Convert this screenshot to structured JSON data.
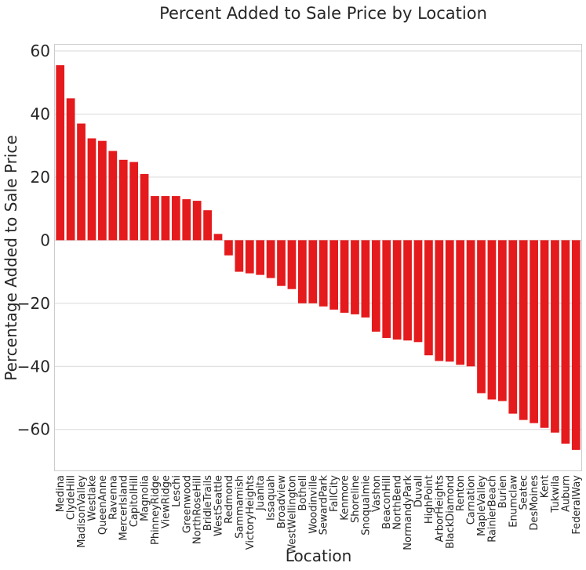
{
  "chart_data": {
    "type": "bar",
    "title": "Percent Added to Sale Price by Location",
    "xlabel": "Location",
    "ylabel": "Percentage Added to Sale Price",
    "ylim": [
      -73,
      62
    ],
    "yticks": [
      60,
      40,
      20,
      0,
      -20,
      -40,
      -60
    ],
    "grid": true,
    "bar_color": "#e41a1c",
    "categories": [
      "Medina",
      "ClydeHill",
      "MadisonValley",
      "Westlake",
      "QueenAnne",
      "Ravenna",
      "MercerIsland",
      "CapitolHill",
      "Magnolia",
      "PhinneyRidge",
      "ViewRidge",
      "Leschi",
      "Greenwood",
      "NorthRoseHill",
      "BridleTrails",
      "WestSeattle",
      "Redmond",
      "Sammamish",
      "VictoryHeights",
      "Juanita",
      "Issaquah",
      "Broadview",
      "WestWellington",
      "Bothell",
      "Woodinville",
      "SewardPark",
      "FallCity",
      "Kenmore",
      "Shoreline",
      "Snoqualmie",
      "Vashon",
      "BeaconHill",
      "NorthBend",
      "NormandyPark",
      "Duvall",
      "HighPoint",
      "ArborHeights",
      "BlackDiamond",
      "Renton",
      "Carnation",
      "MapleValley",
      "RainierBeach",
      "Burien",
      "Enumclaw",
      "Seatec",
      "DesMoines",
      "Kent",
      "Tukwila",
      "Auburn",
      "FederalWay"
    ],
    "values": [
      55.5,
      45,
      37,
      32.3,
      31.5,
      28.3,
      25.5,
      24.8,
      21,
      14,
      14,
      14,
      13,
      12.5,
      9.5,
      2,
      -4.8,
      -10,
      -10.5,
      -11,
      -12,
      -14.5,
      -15.5,
      -20,
      -20,
      -21,
      -22,
      -23,
      -23.5,
      -24.5,
      -29,
      -31,
      -31.5,
      -31.8,
      -32.3,
      -36.5,
      -38.3,
      -38.5,
      -39.5,
      -40,
      -48.5,
      -50.5,
      -51,
      -55,
      -57,
      -58,
      -59.5,
      -61,
      -64.5,
      -66.5
    ]
  }
}
